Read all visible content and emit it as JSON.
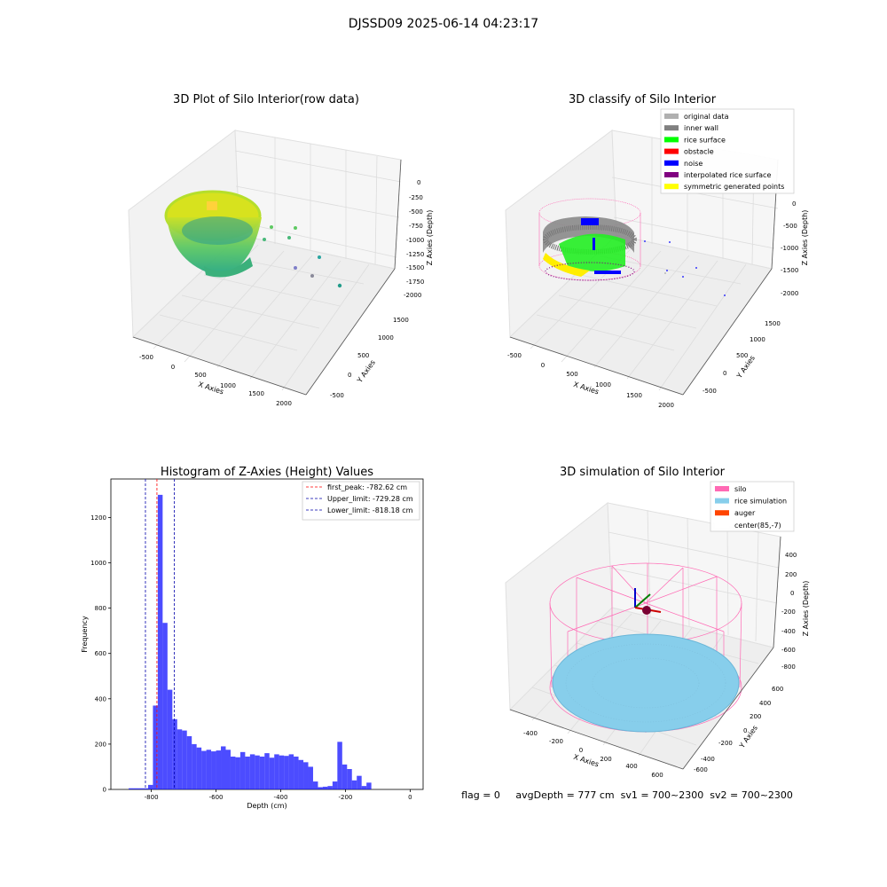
{
  "figure": {
    "suptitle": "DJSSD09 2025-06-14 04:23:17",
    "status_line": "flag = 0     avgDepth = 777 cm  sv1 = 700~2300  sv2 = 700~2300"
  },
  "colors": {
    "hist_bar": "#0000ff",
    "peak_line": "#ff0000",
    "limit_line": "#0000aa",
    "pane": "#f2f2f2",
    "grid": "#dcdcdc"
  },
  "chart_data": [
    {
      "type": "scatter",
      "subtype": "3d",
      "title": "3D Plot of Silo Interior(row data)",
      "xlabel": "X Axies",
      "ylabel": "Y Axies",
      "zlabel": "Z Axies (Depth)",
      "x_ticks": [
        "-500",
        "0",
        "500",
        "1000",
        "1500",
        "2000"
      ],
      "y_ticks": [
        "-500",
        "0",
        "500",
        "1000",
        "1500"
      ],
      "z_ticks": [
        "0",
        "-250",
        "-500",
        "-750",
        "-1000",
        "-1250",
        "-1500",
        "-1750",
        "-2000"
      ],
      "colormap": "viridis"
    },
    {
      "type": "scatter",
      "subtype": "3d",
      "title": "3D classify of Silo Interior",
      "xlabel": "X Axies",
      "ylabel": "Y Axies",
      "zlabel": "Z Axies (Depth)",
      "x_ticks": [
        "-500",
        "0",
        "500",
        "1000",
        "1500",
        "2000"
      ],
      "y_ticks": [
        "-500",
        "0",
        "500",
        "1000",
        "1500"
      ],
      "z_ticks": [
        "0",
        "-500",
        "-1000",
        "-1500",
        "-2000"
      ],
      "legend_position": "top-right",
      "legend": [
        {
          "label": "original data",
          "color": "#b0b0b0"
        },
        {
          "label": "inner wall",
          "color": "#808080"
        },
        {
          "label": "rice surface",
          "color": "#00ff00"
        },
        {
          "label": "obstacle",
          "color": "#ff0000"
        },
        {
          "label": "noise",
          "color": "#0000ff"
        },
        {
          "label": "interpolated rice surface",
          "color": "#800080"
        },
        {
          "label": "symmetric generated points",
          "color": "#ffff00"
        }
      ]
    },
    {
      "type": "bar",
      "subtype": "histogram",
      "title": "Histogram of Z-Axies (Height) Values",
      "xlabel": "Depth (cm)",
      "ylabel": "Frequency",
      "xlim": [
        -925,
        40
      ],
      "ylim": [
        0,
        1370
      ],
      "x_ticks": [
        -800,
        -600,
        -400,
        -200,
        0
      ],
      "y_ticks": [
        0,
        200,
        400,
        600,
        800,
        1000,
        1200
      ],
      "bin_width": 15,
      "bins_start": [
        -870,
        -855,
        -840,
        -825,
        -810,
        -795,
        -780,
        -765,
        -750,
        -735,
        -720,
        -705,
        -690,
        -675,
        -660,
        -645,
        -630,
        -615,
        -600,
        -585,
        -570,
        -555,
        -540,
        -525,
        -510,
        -495,
        -480,
        -465,
        -450,
        -435,
        -420,
        -405,
        -390,
        -375,
        -360,
        -345,
        -330,
        -315,
        -300,
        -285,
        -270,
        -255,
        -240,
        -225,
        -210,
        -195,
        -180,
        -165,
        -150,
        -135,
        -120,
        -105,
        -90,
        -75,
        -60,
        -45,
        -30,
        -15
      ],
      "values": [
        5,
        5,
        5,
        5,
        20,
        370,
        1300,
        735,
        440,
        310,
        265,
        260,
        235,
        200,
        185,
        170,
        175,
        168,
        172,
        190,
        175,
        145,
        142,
        165,
        145,
        155,
        150,
        145,
        160,
        140,
        155,
        150,
        148,
        155,
        145,
        130,
        120,
        100,
        35,
        10,
        12,
        15,
        35,
        210,
        110,
        90,
        40,
        60,
        15,
        30,
        0,
        0,
        0,
        0,
        0,
        0,
        0,
        0
      ],
      "vlines": [
        {
          "label": "first_peak: -782.62 cm",
          "x": -782.62,
          "color": "#ff0000"
        },
        {
          "label": "Upper_limit: -729.28 cm",
          "x": -729.28,
          "color": "#0000aa"
        },
        {
          "label": "Lower_limit: -818.18 cm",
          "x": -818.18,
          "color": "#0000aa"
        }
      ],
      "legend_position": "top-right"
    },
    {
      "type": "scatter",
      "subtype": "3d",
      "title": "3D simulation of Silo Interior",
      "xlabel": "X Axies",
      "ylabel": "Y Axies",
      "zlabel": "Z Axies (Depth)",
      "x_ticks": [
        "-400",
        "-200",
        "0",
        "200",
        "400",
        "600"
      ],
      "y_ticks": [
        "-600",
        "-400",
        "-200",
        "0",
        "200",
        "400",
        "600"
      ],
      "z_ticks": [
        "400",
        "200",
        "0",
        "-200",
        "-400",
        "-600",
        "-800"
      ],
      "legend_position": "top-right",
      "legend": [
        {
          "label": "silo",
          "color": "#ff69b4"
        },
        {
          "label": "rice simulation",
          "color": "#87ceeb"
        },
        {
          "label": "auger",
          "color": "#ff4500"
        },
        {
          "label": "center(85,-7)",
          "color": "#ffffff"
        }
      ]
    }
  ]
}
